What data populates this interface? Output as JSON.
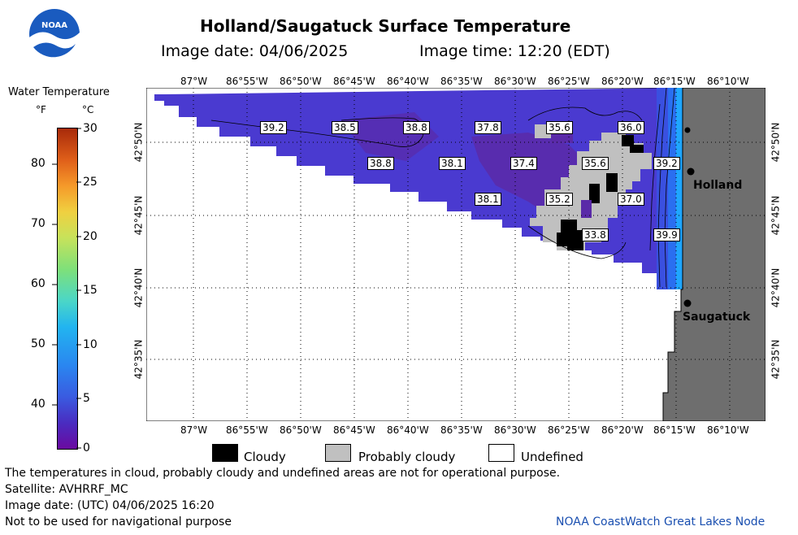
{
  "header": {
    "title": "Holland/Saugatuck Surface Temperature",
    "image_date_label": "Image date: 04/06/2025",
    "image_time_label": "Image time: 12:20 (EDT)"
  },
  "logo": {
    "text": "NOAA"
  },
  "colorbar": {
    "title": "Water Temperature",
    "f_unit": "°F",
    "c_unit": "°C",
    "f_ticks": [
      "80",
      "70",
      "60",
      "50",
      "40"
    ],
    "c_ticks": [
      "30",
      "25",
      "20",
      "15",
      "10",
      "5",
      "0"
    ]
  },
  "map": {
    "top_lon_labels": [
      "87°W",
      "86°55'W",
      "86°50'W",
      "86°45'W",
      "86°40'W",
      "86°35'W",
      "86°30'W",
      "86°25'W",
      "86°20'W",
      "86°15'W",
      "86°10'W"
    ],
    "bottom_lon_labels": [
      "87°W",
      "86°55'W",
      "86°50'W",
      "86°45'W",
      "86°40'W",
      "86°35'W",
      "86°30'W",
      "86°25'W",
      "86°20'W",
      "86°15'W",
      "86°10'W"
    ],
    "lat_labels": [
      "42°50'N",
      "42°45'N",
      "42°40'N",
      "42°35'N"
    ],
    "temperature_labels": [
      "39.2",
      "38.5",
      "38.8",
      "37.8",
      "35.6",
      "36.0",
      "38.8",
      "38.1",
      "37.4",
      "35.6",
      "39.2",
      "38.1",
      "35.2",
      "37.0",
      "33.8",
      "39.9"
    ],
    "cities": [
      "Holland",
      "Saugatuck"
    ]
  },
  "legend": {
    "cloudy": "Cloudy",
    "probably_cloudy": "Probably cloudy",
    "undefined": "Undefined"
  },
  "footer": {
    "line1": "The temperatures in cloud, probably cloudy and undefined areas are not for operational purpose.",
    "line2": "Satellite: AVHRRF_MC",
    "line3": "Image date: (UTC) 04/06/2025  16:20",
    "line4": "Not to be used for navigational purpose",
    "credit": "NOAA CoastWatch Great Lakes Node"
  },
  "colors": {
    "land": "#6e6e6e",
    "water_main": "#4a3ad0",
    "water_dark": "#5a2aa8",
    "water_near_shore": "#2a6ff0",
    "water_shore_cyan": "#1fa6ff",
    "cloudy": "#000000",
    "probably_cloudy": "#c0c0c0",
    "credit": "#1a4fb0"
  }
}
